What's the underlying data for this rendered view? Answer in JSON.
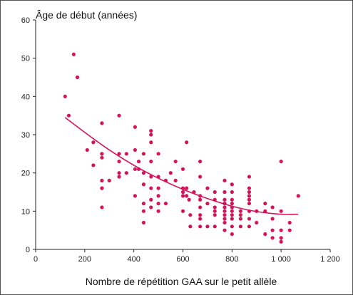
{
  "chart_data": {
    "type": "scatter",
    "title": "",
    "xlabel": "Nombre de répétition GAA sur le petit allèle",
    "ylabel": "Âge de début (années)",
    "xlim": [
      0,
      1200
    ],
    "ylim": [
      0,
      60
    ],
    "x_ticks": [
      "0",
      "200",
      "400",
      "600",
      "800",
      "1 000",
      "1 200"
    ],
    "y_ticks": [
      "0",
      "10",
      "20",
      "30",
      "40",
      "50",
      "60"
    ],
    "grid": false,
    "legend": "none",
    "colors": {
      "points": "#d4145a",
      "axis": "#222222"
    },
    "points": [
      [
        120,
        40
      ],
      [
        135,
        35
      ],
      [
        155,
        51
      ],
      [
        170,
        45
      ],
      [
        210,
        26
      ],
      [
        235,
        28
      ],
      [
        235,
        22
      ],
      [
        270,
        33
      ],
      [
        270,
        25
      ],
      [
        270,
        24
      ],
      [
        270,
        18
      ],
      [
        270,
        16
      ],
      [
        270,
        11
      ],
      [
        300,
        18
      ],
      [
        340,
        35
      ],
      [
        340,
        25
      ],
      [
        340,
        23
      ],
      [
        340,
        20
      ],
      [
        340,
        19
      ],
      [
        370,
        25
      ],
      [
        370,
        20
      ],
      [
        405,
        32
      ],
      [
        405,
        26
      ],
      [
        405,
        21
      ],
      [
        405,
        14
      ],
      [
        420,
        23
      ],
      [
        420,
        21
      ],
      [
        440,
        25
      ],
      [
        440,
        20
      ],
      [
        440,
        17
      ],
      [
        440,
        12
      ],
      [
        440,
        10
      ],
      [
        440,
        7
      ],
      [
        470,
        31
      ],
      [
        470,
        30
      ],
      [
        470,
        28
      ],
      [
        470,
        23
      ],
      [
        470,
        19
      ],
      [
        470,
        16
      ],
      [
        470,
        13
      ],
      [
        470,
        11
      ],
      [
        500,
        25
      ],
      [
        500,
        19
      ],
      [
        500,
        16
      ],
      [
        500,
        14
      ],
      [
        500,
        12
      ],
      [
        500,
        10
      ],
      [
        530,
        18
      ],
      [
        530,
        12
      ],
      [
        550,
        20
      ],
      [
        570,
        23
      ],
      [
        570,
        18
      ],
      [
        600,
        21
      ],
      [
        600,
        16
      ],
      [
        600,
        15
      ],
      [
        600,
        14
      ],
      [
        600,
        10
      ],
      [
        615,
        28
      ],
      [
        615,
        16
      ],
      [
        615,
        14
      ],
      [
        625,
        13
      ],
      [
        630,
        9
      ],
      [
        630,
        6
      ],
      [
        645,
        15
      ],
      [
        670,
        23
      ],
      [
        670,
        19
      ],
      [
        670,
        14
      ],
      [
        670,
        13
      ],
      [
        670,
        11
      ],
      [
        670,
        9
      ],
      [
        670,
        8
      ],
      [
        670,
        6
      ],
      [
        700,
        16
      ],
      [
        700,
        12
      ],
      [
        700,
        6
      ],
      [
        730,
        15
      ],
      [
        730,
        13
      ],
      [
        730,
        11
      ],
      [
        730,
        10
      ],
      [
        730,
        9
      ],
      [
        730,
        6
      ],
      [
        770,
        18
      ],
      [
        770,
        15
      ],
      [
        770,
        13
      ],
      [
        770,
        12
      ],
      [
        770,
        11
      ],
      [
        770,
        10
      ],
      [
        770,
        9
      ],
      [
        770,
        8
      ],
      [
        770,
        7
      ],
      [
        770,
        5
      ],
      [
        800,
        17
      ],
      [
        800,
        15
      ],
      [
        800,
        13
      ],
      [
        800,
        12
      ],
      [
        800,
        11
      ],
      [
        800,
        10
      ],
      [
        800,
        9
      ],
      [
        800,
        8
      ],
      [
        800,
        6
      ],
      [
        800,
        4
      ],
      [
        835,
        10
      ],
      [
        835,
        9
      ],
      [
        835,
        8
      ],
      [
        835,
        6
      ],
      [
        870,
        19
      ],
      [
        870,
        16
      ],
      [
        870,
        15
      ],
      [
        870,
        14
      ],
      [
        870,
        13
      ],
      [
        870,
        12
      ],
      [
        870,
        10
      ],
      [
        870,
        8
      ],
      [
        870,
        6
      ],
      [
        900,
        10
      ],
      [
        900,
        7
      ],
      [
        935,
        12
      ],
      [
        935,
        10
      ],
      [
        935,
        4
      ],
      [
        965,
        11
      ],
      [
        965,
        8
      ],
      [
        965,
        5
      ],
      [
        965,
        3
      ],
      [
        1000,
        23
      ],
      [
        1000,
        10
      ],
      [
        1000,
        5
      ],
      [
        1000,
        3
      ],
      [
        1000,
        2
      ],
      [
        1035,
        7
      ],
      [
        1035,
        5
      ],
      [
        1070,
        14
      ]
    ],
    "trend_line": {
      "x": [
        120,
        200,
        300,
        400,
        500,
        600,
        700,
        800,
        900,
        1000,
        1070
      ],
      "y": [
        34.5,
        30.6,
        26.0,
        22.0,
        18.6,
        15.7,
        13.3,
        11.3,
        9.9,
        9.2,
        9.2
      ]
    }
  }
}
